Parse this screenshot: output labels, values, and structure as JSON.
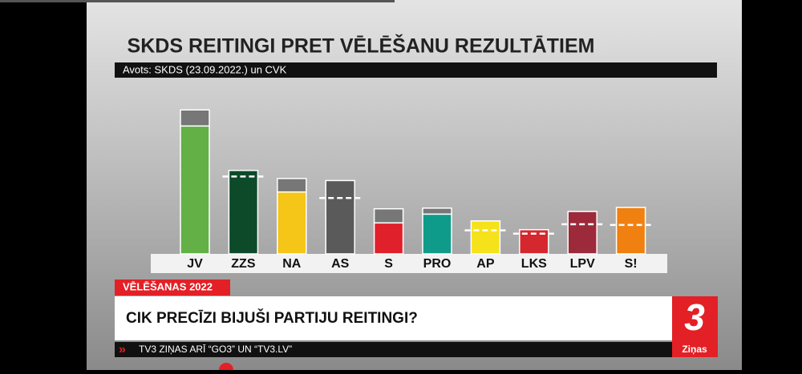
{
  "chart_data": {
    "type": "bar",
    "title": "SKDS REITINGI PRET VĒLĒŠANU REZULTĀTIEM",
    "subtitle": "Avots: SKDS (23.09.2022.) un CVK",
    "categories": [
      "JV",
      "ZZS",
      "NA",
      "AS",
      "S",
      "PRO",
      "AP",
      "LKS",
      "LPV",
      "S!"
    ],
    "values": [
      19.0,
      12.4,
      9.2,
      10.9,
      4.6,
      5.9,
      4.9,
      3.6,
      6.3,
      6.9
    ],
    "reference_values": [
      21.4,
      11.5,
      11.2,
      8.3,
      6.7,
      6.8,
      3.5,
      3.0,
      4.4,
      4.3
    ],
    "colors": [
      "#62b046",
      "#0c4a2a",
      "#f5c518",
      "#5a5a5a",
      "#e0202a",
      "#0f9b8a",
      "#f5e21a",
      "#d5282e",
      "#9c2a3a",
      "#f0800f"
    ],
    "reference_color": "#777777"
  },
  "lower_third": {
    "tag": "VĒLĒŠANAS 2022",
    "headline": "CIK PRECĪZI BIJUŠI PARTIJU REITINGI?",
    "ticker": "TV3 ZIŅAS ARĪ “GO3” UN “TV3.LV”",
    "ticker_icon": "»"
  },
  "logo": {
    "mark": "3",
    "label": "Ziņas"
  }
}
